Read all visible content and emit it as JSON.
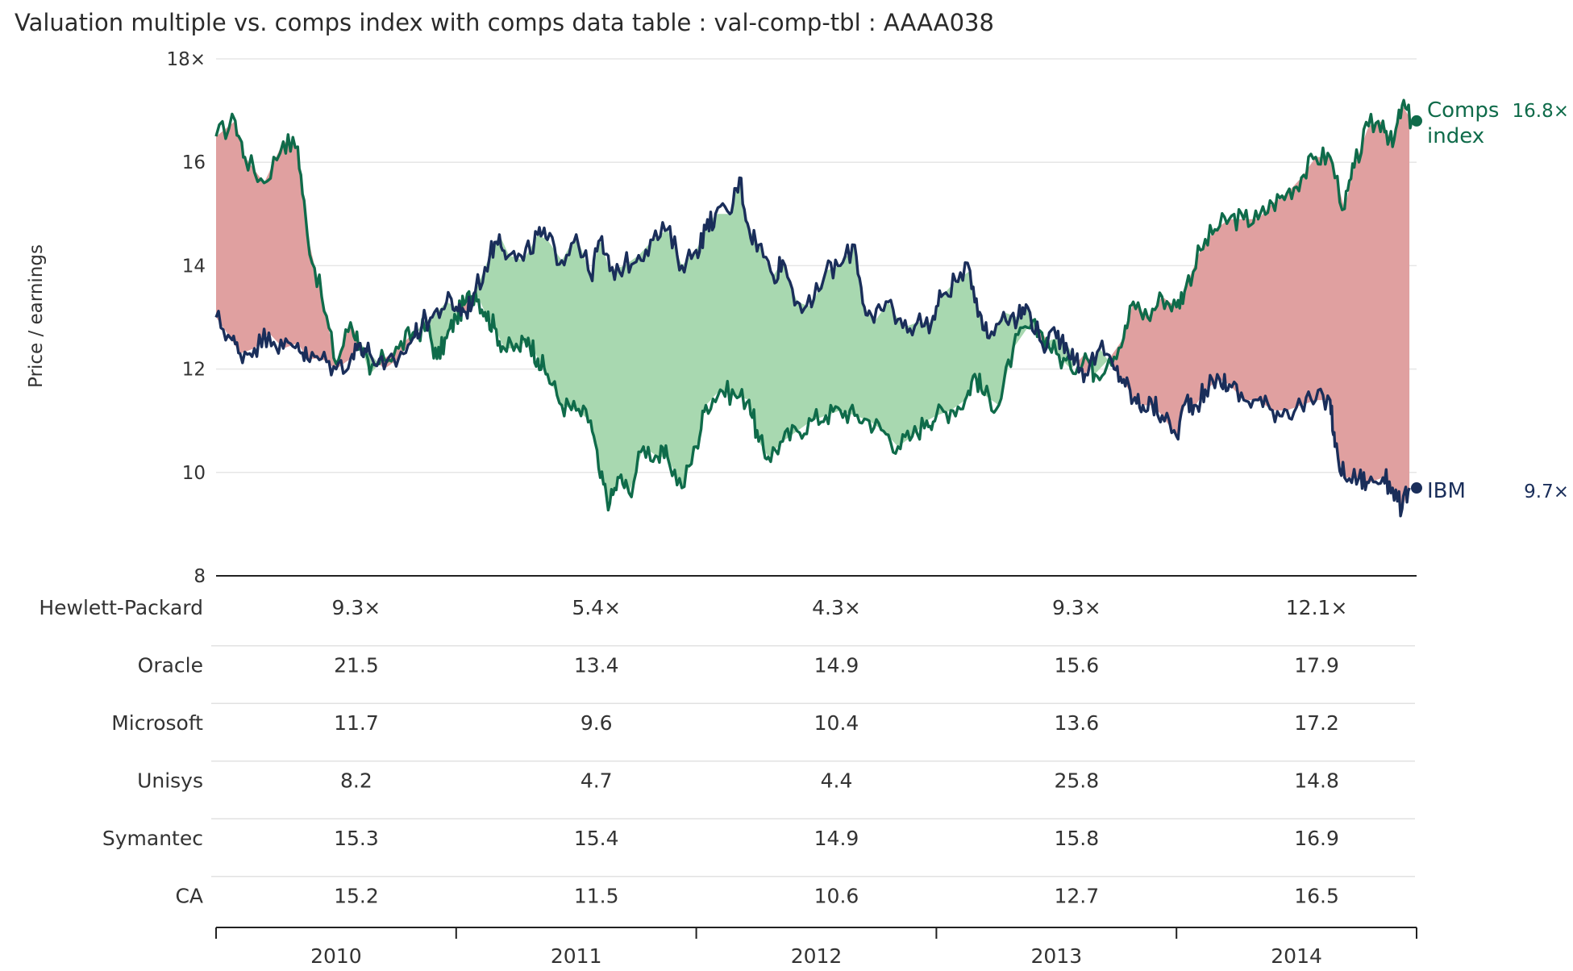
{
  "title": "Valuation multiple vs. comps index  with comps data table : val-comp-tbl : AAAA038",
  "colors": {
    "comps": "#0f6b4a",
    "ibm": "#1a2e5a",
    "premium_fill": "#e0a0a0",
    "discount_fill": "#a8d8b0",
    "grid": "#e6e6e6",
    "axis": "#222222",
    "row_divider": "#e2e2e2"
  },
  "chart_data": {
    "type": "line",
    "ylabel": "Price / earnings",
    "ylim": [
      8,
      18
    ],
    "yticks": [
      {
        "value": 8,
        "label": "8"
      },
      {
        "value": 10,
        "label": "10"
      },
      {
        "value": 12,
        "label": "12"
      },
      {
        "value": 14,
        "label": "14"
      },
      {
        "value": 16,
        "label": "16"
      },
      {
        "value": 18,
        "label": "18×"
      }
    ],
    "xlim": [
      2010.0,
      2015.0
    ],
    "x_categories": [
      "2010",
      "2011",
      "2012",
      "2013",
      "2014"
    ],
    "grid": true,
    "series": [
      {
        "name": "Comps index",
        "end_label": [
          "Comps",
          "index"
        ],
        "end_value": "16.8×",
        "points": [
          [
            2010.0,
            16.5
          ],
          [
            2010.08,
            16.8
          ],
          [
            2010.12,
            16.1
          ],
          [
            2010.2,
            15.6
          ],
          [
            2010.28,
            16.4
          ],
          [
            2010.34,
            16.3
          ],
          [
            2010.38,
            14.6
          ],
          [
            2010.44,
            13.4
          ],
          [
            2010.5,
            12.1
          ],
          [
            2010.56,
            12.9
          ],
          [
            2010.6,
            12.5
          ],
          [
            2010.64,
            11.9
          ],
          [
            2010.7,
            12.2
          ],
          [
            2010.76,
            12.4
          ],
          [
            2010.82,
            12.7
          ],
          [
            2010.88,
            12.8
          ],
          [
            2010.92,
            12.2
          ],
          [
            2010.96,
            12.6
          ],
          [
            2011.0,
            13.0
          ],
          [
            2011.04,
            13.3
          ],
          [
            2011.08,
            13.5
          ],
          [
            2011.12,
            13.1
          ],
          [
            2011.16,
            12.8
          ],
          [
            2011.2,
            12.4
          ],
          [
            2011.26,
            12.4
          ],
          [
            2011.3,
            12.6
          ],
          [
            2011.34,
            12.2
          ],
          [
            2011.38,
            11.9
          ],
          [
            2011.44,
            11.3
          ],
          [
            2011.5,
            11.2
          ],
          [
            2011.56,
            11.0
          ],
          [
            2011.6,
            9.9
          ],
          [
            2011.64,
            9.4
          ],
          [
            2011.68,
            9.9
          ],
          [
            2011.72,
            9.6
          ],
          [
            2011.78,
            10.5
          ],
          [
            2011.84,
            10.3
          ],
          [
            2011.88,
            10.3
          ],
          [
            2011.94,
            9.7
          ],
          [
            2012.0,
            10.5
          ],
          [
            2012.04,
            11.3
          ],
          [
            2012.1,
            11.6
          ],
          [
            2012.16,
            11.5
          ],
          [
            2012.22,
            11.4
          ],
          [
            2012.26,
            10.6
          ],
          [
            2012.3,
            10.3
          ],
          [
            2012.36,
            10.6
          ],
          [
            2012.42,
            10.8
          ],
          [
            2012.48,
            11.0
          ],
          [
            2012.54,
            11.1
          ],
          [
            2012.6,
            11.2
          ],
          [
            2012.66,
            11.1
          ],
          [
            2012.72,
            11.0
          ],
          [
            2012.78,
            10.8
          ],
          [
            2012.84,
            10.5
          ],
          [
            2012.9,
            10.7
          ],
          [
            2012.96,
            11.0
          ],
          [
            2013.0,
            11.1
          ],
          [
            2013.06,
            11.2
          ],
          [
            2013.12,
            11.4
          ],
          [
            2013.16,
            11.9
          ],
          [
            2013.2,
            11.5
          ],
          [
            2013.26,
            11.3
          ],
          [
            2013.32,
            12.4
          ],
          [
            2013.38,
            12.8
          ],
          [
            2013.44,
            12.7
          ],
          [
            2013.5,
            12.3
          ],
          [
            2013.56,
            12.0
          ],
          [
            2013.62,
            12.3
          ],
          [
            2013.66,
            11.9
          ],
          [
            2013.72,
            12.2
          ],
          [
            2013.78,
            12.6
          ],
          [
            2013.82,
            13.3
          ],
          [
            2013.88,
            13.0
          ],
          [
            2013.94,
            13.4
          ],
          [
            2014.0,
            13.2
          ],
          [
            2014.04,
            13.6
          ],
          [
            2014.1,
            14.3
          ],
          [
            2014.16,
            14.7
          ],
          [
            2014.22,
            14.9
          ],
          [
            2014.28,
            14.9
          ],
          [
            2014.34,
            14.9
          ],
          [
            2014.4,
            15.2
          ],
          [
            2014.46,
            15.4
          ],
          [
            2014.52,
            15.7
          ],
          [
            2014.58,
            16.1
          ],
          [
            2014.64,
            16.1
          ],
          [
            2014.7,
            15.1
          ],
          [
            2014.74,
            15.9
          ],
          [
            2014.8,
            16.7
          ],
          [
            2014.86,
            16.8
          ],
          [
            2014.9,
            16.3
          ],
          [
            2014.94,
            17.1
          ],
          [
            2014.98,
            16.8
          ]
        ]
      },
      {
        "name": "IBM",
        "end_label": [
          "IBM"
        ],
        "end_value": "9.7×",
        "points": [
          [
            2010.0,
            13.0
          ],
          [
            2010.06,
            12.6
          ],
          [
            2010.1,
            12.3
          ],
          [
            2010.16,
            12.4
          ],
          [
            2010.22,
            12.7
          ],
          [
            2010.28,
            12.4
          ],
          [
            2010.34,
            12.5
          ],
          [
            2010.38,
            12.2
          ],
          [
            2010.44,
            12.2
          ],
          [
            2010.5,
            12.0
          ],
          [
            2010.56,
            12.2
          ],
          [
            2010.6,
            12.5
          ],
          [
            2010.64,
            12.3
          ],
          [
            2010.7,
            12.0
          ],
          [
            2010.76,
            12.2
          ],
          [
            2010.82,
            12.6
          ],
          [
            2010.86,
            12.9
          ],
          [
            2010.9,
            13.0
          ],
          [
            2010.96,
            13.3
          ],
          [
            2011.0,
            13.2
          ],
          [
            2011.04,
            13.1
          ],
          [
            2011.08,
            13.5
          ],
          [
            2011.14,
            14.2
          ],
          [
            2011.18,
            14.6
          ],
          [
            2011.22,
            14.2
          ],
          [
            2011.28,
            14.1
          ],
          [
            2011.34,
            14.6
          ],
          [
            2011.38,
            14.5
          ],
          [
            2011.44,
            14.1
          ],
          [
            2011.5,
            14.6
          ],
          [
            2011.56,
            13.8
          ],
          [
            2011.6,
            14.5
          ],
          [
            2011.64,
            13.9
          ],
          [
            2011.7,
            14.0
          ],
          [
            2011.76,
            14.2
          ],
          [
            2011.82,
            14.5
          ],
          [
            2011.88,
            14.7
          ],
          [
            2011.94,
            14.0
          ],
          [
            2012.0,
            14.3
          ],
          [
            2012.04,
            14.7
          ],
          [
            2012.08,
            15.0
          ],
          [
            2012.14,
            15.0
          ],
          [
            2012.18,
            15.7
          ],
          [
            2012.22,
            14.7
          ],
          [
            2012.26,
            14.4
          ],
          [
            2012.32,
            13.8
          ],
          [
            2012.36,
            14.1
          ],
          [
            2012.42,
            13.3
          ],
          [
            2012.48,
            13.2
          ],
          [
            2012.54,
            13.9
          ],
          [
            2012.6,
            14.0
          ],
          [
            2012.66,
            14.4
          ],
          [
            2012.7,
            13.2
          ],
          [
            2012.74,
            12.9
          ],
          [
            2012.8,
            13.3
          ],
          [
            2012.86,
            12.8
          ],
          [
            2012.92,
            12.9
          ],
          [
            2012.98,
            12.9
          ],
          [
            2013.02,
            13.4
          ],
          [
            2013.08,
            13.7
          ],
          [
            2013.14,
            13.9
          ],
          [
            2013.18,
            13.1
          ],
          [
            2013.22,
            12.6
          ],
          [
            2013.28,
            13.1
          ],
          [
            2013.34,
            13.0
          ],
          [
            2013.38,
            13.2
          ],
          [
            2013.44,
            12.5
          ],
          [
            2013.5,
            12.6
          ],
          [
            2013.54,
            12.5
          ],
          [
            2013.58,
            12.2
          ],
          [
            2013.62,
            11.9
          ],
          [
            2013.68,
            12.4
          ],
          [
            2013.74,
            12.0
          ],
          [
            2013.78,
            11.8
          ],
          [
            2013.82,
            11.4
          ],
          [
            2013.86,
            11.3
          ],
          [
            2013.9,
            11.3
          ],
          [
            2013.94,
            11.1
          ],
          [
            2014.0,
            10.7
          ],
          [
            2014.04,
            11.4
          ],
          [
            2014.08,
            11.3
          ],
          [
            2014.12,
            11.6
          ],
          [
            2014.18,
            11.8
          ],
          [
            2014.22,
            11.7
          ],
          [
            2014.28,
            11.4
          ],
          [
            2014.34,
            11.4
          ],
          [
            2014.4,
            11.2
          ],
          [
            2014.46,
            11.2
          ],
          [
            2014.52,
            11.3
          ],
          [
            2014.58,
            11.4
          ],
          [
            2014.64,
            11.4
          ],
          [
            2014.66,
            10.5
          ],
          [
            2014.7,
            9.9
          ],
          [
            2014.76,
            9.9
          ],
          [
            2014.8,
            9.8
          ],
          [
            2014.86,
            9.9
          ],
          [
            2014.9,
            9.7
          ],
          [
            2014.94,
            9.3
          ],
          [
            2014.97,
            9.7
          ]
        ]
      }
    ]
  },
  "table": {
    "rows": [
      {
        "label": "Hewlett-Packard",
        "values": [
          "9.3×",
          "5.4×",
          "4.3×",
          "9.3×",
          "12.1×"
        ]
      },
      {
        "label": "Oracle",
        "values": [
          "21.5",
          "13.4",
          "14.9",
          "15.6",
          "17.9"
        ]
      },
      {
        "label": "Microsoft",
        "values": [
          "11.7",
          "9.6",
          "10.4",
          "13.6",
          "17.2"
        ]
      },
      {
        "label": "Unisys",
        "values": [
          "8.2",
          "4.7",
          "4.4",
          "25.8",
          "14.8"
        ]
      },
      {
        "label": "Symantec",
        "values": [
          "15.3",
          "15.4",
          "14.9",
          "15.8",
          "16.9"
        ]
      },
      {
        "label": "CA",
        "values": [
          "15.2",
          "11.5",
          "10.6",
          "12.7",
          "16.5"
        ]
      }
    ]
  }
}
